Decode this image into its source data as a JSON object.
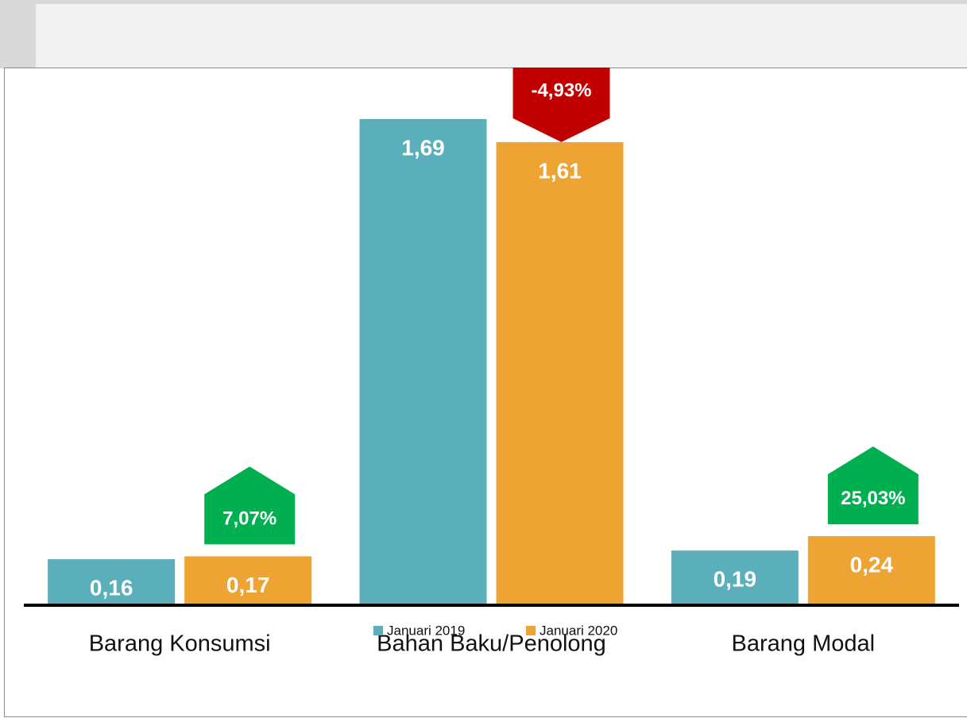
{
  "chart_data": {
    "type": "bar",
    "categories": [
      "Barang Konsumsi",
      "Bahan Baku/Penolong",
      "Barang Modal"
    ],
    "series": [
      {
        "name": "Januari 2019",
        "color": "#5aafba",
        "values": [
          0.16,
          1.69,
          0.19
        ],
        "value_labels": [
          "0,16",
          "1,69",
          "0,19"
        ]
      },
      {
        "name": "Januari 2020",
        "color": "#eea433",
        "values": [
          0.17,
          1.61,
          0.24
        ],
        "value_labels": [
          "0,17",
          "1,61",
          "0,24"
        ]
      }
    ],
    "changes": [
      7.07,
      -4.93,
      25.03
    ],
    "change_labels": [
      "7,07%",
      "-4,93%",
      "25,03%"
    ],
    "change_colors": {
      "up": "#00b050",
      "down": "#c00000"
    },
    "ylim": [
      0,
      1.85
    ],
    "legend": "bottom"
  }
}
